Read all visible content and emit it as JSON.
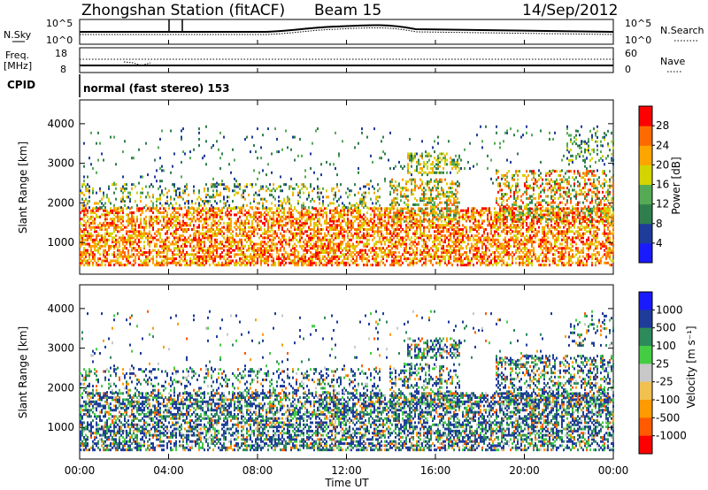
{
  "header": {
    "title": "Zhongshan Station (fitACF)",
    "beam": "Beam 15",
    "date": "14/Sep/2012"
  },
  "noise_panel": {
    "left_label": "N.Sky",
    "left_ticks": [
      "10^5",
      "10^0"
    ],
    "right_ticks": [
      "10^5",
      "10^0"
    ],
    "right_label": "N.Search"
  },
  "freq_panel": {
    "left_label_1": "Freq.",
    "left_label_2": "[MHz]",
    "left_ticks": [
      "18",
      "8"
    ],
    "right_ticks": [
      "60",
      "0"
    ],
    "right_label": "Nave"
  },
  "cpid": {
    "label": "CPID",
    "value": "normal (fast stereo) 153"
  },
  "colors": {
    "power": [
      "#1a1aff",
      "#1e3c9a",
      "#2f7f4d",
      "#55aa55",
      "#d4d400",
      "#ffa500",
      "#ff6a00",
      "#ff0000"
    ],
    "velocity": [
      "#ff0000",
      "#ff5a00",
      "#ff9a00",
      "#f0c050",
      "#c8c8c8",
      "#44cc44",
      "#2d8a5a",
      "#1e3c9a",
      "#1a1aff"
    ]
  },
  "chart_data": [
    {
      "type": "heatmap",
      "title": "",
      "ylabel": "Slant Range [km]",
      "xlabel": "",
      "x_ticks": [
        "00:00",
        "04:00",
        "08:00",
        "12:00",
        "16:00",
        "20:00",
        "00:00"
      ],
      "y_ticks": [
        "1000",
        "2000",
        "3000",
        "4000"
      ],
      "ylim": [
        200,
        4600
      ],
      "colorbar": {
        "label": "Power [dB]",
        "ticks": [
          "4",
          "8",
          "12",
          "16",
          "20",
          "24",
          "28"
        ]
      }
    },
    {
      "type": "heatmap",
      "title": "",
      "ylabel": "Slant Range [km]",
      "xlabel": "Time UT",
      "x_ticks": [
        "00:00",
        "04:00",
        "08:00",
        "12:00",
        "16:00",
        "20:00",
        "00:00"
      ],
      "y_ticks": [
        "1000",
        "2000",
        "3000",
        "4000"
      ],
      "ylim": [
        200,
        4600
      ],
      "colorbar": {
        "label": "Velocity [m s⁻¹]",
        "ticks": [
          "1000",
          "500",
          "100",
          "25",
          "-25",
          "-100",
          "-500",
          "-1000"
        ]
      }
    }
  ]
}
